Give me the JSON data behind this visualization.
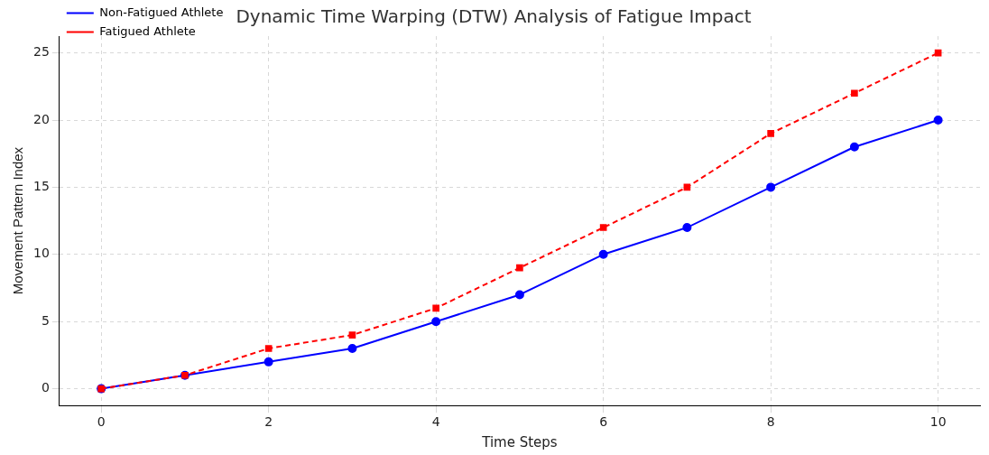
{
  "chart_data": {
    "type": "line",
    "title": "Dynamic Time Warping (DTW) Analysis of Fatigue Impact",
    "xlabel": "Time Steps",
    "ylabel": "Movement Pattern Index",
    "x": [
      0,
      1,
      2,
      3,
      4,
      5,
      6,
      7,
      8,
      9,
      10
    ],
    "series": [
      {
        "name": "Non-Fatigued Athlete",
        "color": "#0000ff",
        "marker": "circle",
        "line_style": "solid",
        "values": [
          0,
          1,
          2,
          3,
          5,
          7,
          10,
          12,
          15,
          18,
          20
        ]
      },
      {
        "name": "Fatigued Athlete",
        "color": "#ff0000",
        "marker": "square",
        "line_style": "dashed",
        "values": [
          0,
          1,
          3,
          4,
          6,
          9,
          12,
          15,
          19,
          22,
          25
        ]
      }
    ],
    "xlim": [
      -0.5,
      10.5
    ],
    "xticks": [
      0,
      2,
      4,
      6,
      8,
      10
    ],
    "ylim": [
      -1.25,
      26.25
    ],
    "yticks": [
      0,
      5,
      10,
      15,
      20,
      25
    ],
    "grid": true,
    "legend": "top left"
  }
}
